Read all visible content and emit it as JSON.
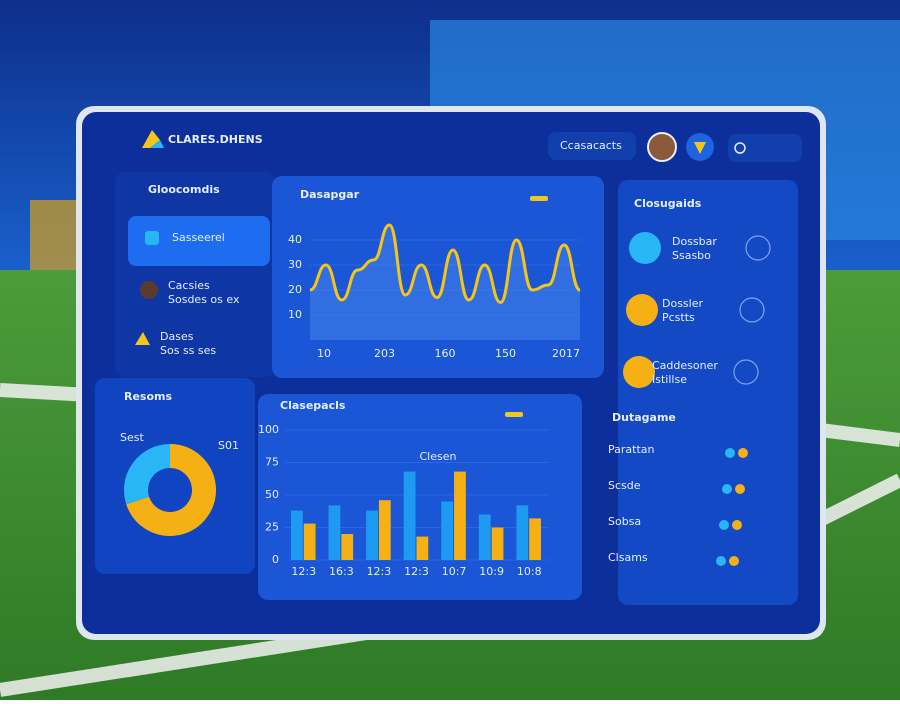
{
  "header": {
    "brand": "CLARES.DHENS",
    "search": "Ccasacacts"
  },
  "sidebar": {
    "title": "Gloocomdis",
    "items": [
      {
        "label": "Sasseerel",
        "active": true
      },
      {
        "label": "Cacsies",
        "sub": "Sosdes os ex"
      },
      {
        "label": "Dases",
        "sub": "Sos ss ses"
      }
    ]
  },
  "line_chart": {
    "type": "line",
    "title": "Dasapgar",
    "color": "#f5c518",
    "values": [
      20,
      30,
      16,
      28,
      32,
      46,
      18,
      30,
      17,
      36,
      16,
      30,
      15,
      40,
      20,
      22,
      38,
      20
    ],
    "ylim": [
      0,
      50
    ],
    "yticks": [
      10,
      20,
      30,
      40
    ],
    "xlabels": [
      "10",
      "203",
      "160",
      "150",
      "2017"
    ]
  },
  "bar_chart": {
    "type": "bar",
    "title": "Clasepacls",
    "subtitle": "Clesen",
    "categories": [
      "12:3",
      "16:3",
      "12:3",
      "12:3",
      "10:7",
      "10:9",
      "10:8"
    ],
    "series": [
      {
        "color": "#1e9bf0",
        "values": [
          38,
          42,
          38,
          68,
          45,
          35,
          42
        ]
      },
      {
        "color": "#f5b014",
        "values": [
          28,
          20,
          46,
          18,
          68,
          25,
          32
        ]
      }
    ],
    "ylim": [
      0,
      100
    ],
    "yticks": [
      0,
      25,
      50,
      75,
      100
    ]
  },
  "donut": {
    "type": "pie",
    "title": "Resoms",
    "labels": [
      "Sest",
      "S01"
    ],
    "values": [
      70,
      30
    ],
    "colors": [
      "#f5b014",
      "#29b6f6"
    ]
  },
  "contacts": {
    "title": "Closugaids",
    "items": [
      {
        "name": "Dossbar",
        "sub": "Ssasbo",
        "color": "#29b6f6"
      },
      {
        "name": "Dossler",
        "sub": "Pcstts",
        "color": "#f5b014"
      },
      {
        "name": "Caddesoner",
        "sub": "Istillse",
        "color": "#f5b014"
      }
    ]
  },
  "list": {
    "title": "Dutagame",
    "rows": [
      "Parattan",
      "Scsde",
      "Sobsa",
      "Clsams"
    ]
  }
}
